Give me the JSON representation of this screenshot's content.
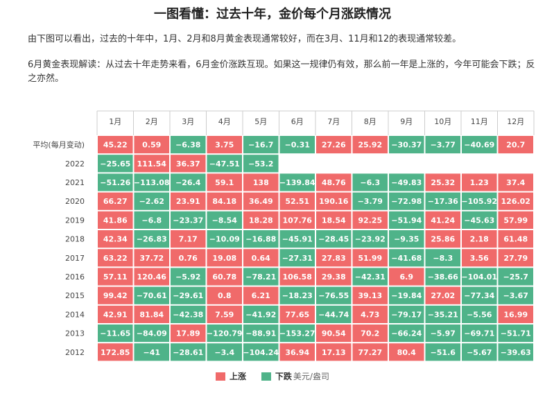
{
  "header": {
    "title": "一图看懂：过去十年，金价每个月涨跌情况",
    "intro": "由下图可以看出，过去的十年中，1月、2月和8月黄金表现通常较好，而在3月、11月和12的表现通常较差。",
    "june_note": "6月黄金表现解读：从过去十年走势来看，6月金价涨跌互现。如果这一规律仍有效，那么前一年是上涨的，今年可能会下跌；反之亦然。"
  },
  "legend": {
    "up_label": "上涨",
    "down_label": "下跌",
    "unit": "美元/盎司"
  },
  "colors": {
    "up": "#f06a6a",
    "down": "#4fb389",
    "grid": "#ffffff",
    "text_on_cell": "#ffffff"
  },
  "chart_data": {
    "type": "heatmap",
    "columns": [
      "1月",
      "2月",
      "3月",
      "4月",
      "5月",
      "6月",
      "7月",
      "8月",
      "9月",
      "10月",
      "11月",
      "12月"
    ],
    "rows": [
      {
        "label": "平均(每月变动)",
        "values": [
          45.22,
          0.59,
          -6.38,
          3.75,
          -16.7,
          -0.31,
          27.26,
          25.92,
          -30.37,
          -3.77,
          -40.69,
          20.7
        ]
      },
      {
        "label": "2022",
        "values": [
          -25.65,
          111.54,
          36.37,
          -47.51,
          -53.2,
          null,
          null,
          null,
          null,
          null,
          null,
          null
        ]
      },
      {
        "label": "2021",
        "values": [
          -51.26,
          -113.08,
          -26.4,
          59.1,
          138,
          -139.84,
          48.76,
          -6.3,
          -49.83,
          25.32,
          1.23,
          37.4
        ]
      },
      {
        "label": "2020",
        "values": [
          66.27,
          -2.62,
          23.91,
          84.18,
          36.49,
          52.51,
          190.16,
          -3.79,
          -72.98,
          -17.36,
          -105.92,
          126.02
        ]
      },
      {
        "label": "2019",
        "values": [
          41.86,
          -6.8,
          -23.37,
          -8.54,
          18.28,
          107.76,
          18.54,
          92.25,
          -51.94,
          41.24,
          -45.63,
          57.99
        ]
      },
      {
        "label": "2018",
        "values": [
          42.34,
          -26.83,
          7.17,
          -10.09,
          -16.88,
          -45.91,
          -28.45,
          -23.92,
          -9.35,
          25.86,
          2.18,
          61.48
        ]
      },
      {
        "label": "2017",
        "values": [
          63.22,
          37.72,
          0.76,
          19.08,
          0.64,
          -27.31,
          27.83,
          51.99,
          -41.68,
          -8.3,
          3.56,
          27.79
        ]
      },
      {
        "label": "2016",
        "values": [
          57.11,
          120.46,
          -5.92,
          60.78,
          -78.21,
          106.58,
          29.38,
          -42.31,
          6.9,
          -38.66,
          -104.01,
          -25.7
        ]
      },
      {
        "label": "2015",
        "values": [
          99.42,
          -70.61,
          -29.61,
          0.8,
          6.21,
          -18.23,
          -76.55,
          39.13,
          -19.84,
          27.02,
          -77.34,
          -3.67
        ]
      },
      {
        "label": "2014",
        "values": [
          42.91,
          81.84,
          -42.38,
          7.59,
          -41.92,
          77.65,
          -44.74,
          4.73,
          -79.17,
          -35.21,
          -5.56,
          16.99
        ]
      },
      {
        "label": "2013",
        "values": [
          -11.65,
          -84.09,
          17.89,
          -120.79,
          -88.91,
          -153.27,
          90.54,
          70.2,
          -66.24,
          -5.97,
          -69.71,
          -51.71
        ]
      },
      {
        "label": "2012",
        "values": [
          172.85,
          -41,
          -28.61,
          -3.4,
          -104.24,
          36.94,
          17.13,
          77.27,
          80.4,
          -51.6,
          -5.67,
          -39.63
        ]
      }
    ]
  }
}
